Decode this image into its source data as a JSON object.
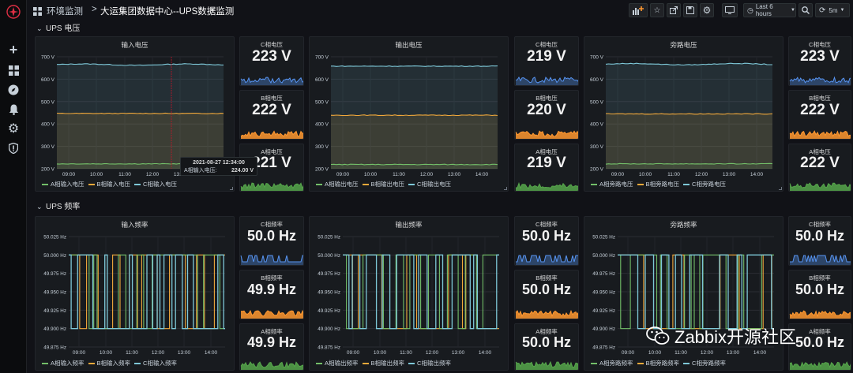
{
  "breadcrumb": {
    "folder": "环境监测",
    "separator": ">",
    "dashboard": "大运集团数据中心--UPS数据监测"
  },
  "toolbar": {
    "time_range": "Last 6 hours",
    "refresh_interval": "5m"
  },
  "rows": [
    {
      "title": "UPS 电压"
    },
    {
      "title": "UPS 频率"
    }
  ],
  "time_ticks": [
    "09:00",
    "10:00",
    "11:00",
    "12:00",
    "13:00",
    "14:00"
  ],
  "voltage_ticks": [
    "700 V",
    "600 V",
    "500 V",
    "400 V",
    "300 V",
    "200 V"
  ],
  "freq_ticks": [
    "50.025 Hz",
    "50.000 Hz",
    "49.975 Hz",
    "49.950 Hz",
    "49.925 Hz",
    "49.900 Hz",
    "49.875 Hz"
  ],
  "voltage_graphs": [
    {
      "title": "输入电压",
      "legend": [
        "A相输入电压",
        "B相输入电压",
        "C相输入电压"
      ]
    },
    {
      "title": "输出电压",
      "legend": [
        "A相输出电压",
        "B相输出电压",
        "C相输出电压"
      ]
    },
    {
      "title": "旁路电压",
      "legend": [
        "A相旁路电压",
        "B相旁路电压",
        "C相旁路电压"
      ]
    }
  ],
  "freq_graphs": [
    {
      "title": "输入频率",
      "legend": [
        "A相输入频率",
        "B相输入频率",
        "C相输入频率"
      ]
    },
    {
      "title": "输出频率",
      "legend": [
        "A相输出频率",
        "B相输出频率",
        "C相输出频率"
      ]
    },
    {
      "title": "旁路频率",
      "legend": [
        "A相旁路频率",
        "B相旁路频率",
        "C相旁路频率"
      ]
    }
  ],
  "voltage_stats": [
    [
      {
        "title": "C相电压",
        "value": "223 V",
        "color": "#5794f2"
      },
      {
        "title": "B相电压",
        "value": "222 V",
        "color": "#ff9830"
      },
      {
        "title": "A相电压",
        "value": "221 V",
        "color": "#56a64b"
      }
    ],
    [
      {
        "title": "C相电压",
        "value": "219 V",
        "color": "#5794f2"
      },
      {
        "title": "B相电压",
        "value": "220 V",
        "color": "#ff9830"
      },
      {
        "title": "A相电压",
        "value": "219 V",
        "color": "#56a64b"
      }
    ],
    [
      {
        "title": "C相电压",
        "value": "223 V",
        "color": "#5794f2"
      },
      {
        "title": "B相电压",
        "value": "222 V",
        "color": "#ff9830"
      },
      {
        "title": "A相电压",
        "value": "222 V",
        "color": "#56a64b"
      }
    ]
  ],
  "freq_stats": [
    [
      {
        "title": "C相频率",
        "value": "50.0 Hz",
        "color": "#5794f2"
      },
      {
        "title": "B相频率",
        "value": "49.9 Hz",
        "color": "#ff9830"
      },
      {
        "title": "A相频率",
        "value": "49.9 Hz",
        "color": "#56a64b"
      }
    ],
    [
      {
        "title": "C相频率",
        "value": "50.0 Hz",
        "color": "#5794f2"
      },
      {
        "title": "B相频率",
        "value": "50.0 Hz",
        "color": "#ff9830"
      },
      {
        "title": "A相频率",
        "value": "50.0 Hz",
        "color": "#56a64b"
      }
    ],
    [
      {
        "title": "C相频率",
        "value": "50.0 Hz",
        "color": "#5794f2"
      },
      {
        "title": "B相频率",
        "value": "50.0 Hz",
        "color": "#ff9830"
      },
      {
        "title": "A相频率",
        "value": "50.0 Hz",
        "color": "#56a64b"
      }
    ]
  ],
  "tooltip": {
    "time": "2021-08-27 12:34:00",
    "series": "A相输入电压:",
    "value": "224.00 V"
  },
  "watermark": {
    "text": "Zabbix开源社区",
    "icon": "wechat-icon"
  },
  "colors": {
    "phase_a": "#73bf69",
    "phase_b": "#f2a93b",
    "phase_c": "#7ec8d8",
    "stat_c": "#5794f2",
    "stat_b": "#ff9830",
    "stat_a": "#56a64b"
  },
  "chart_data": [
    {
      "type": "line",
      "title": "输入电压",
      "x": [
        "08:30",
        "14:30"
      ],
      "ylim": [
        200,
        700
      ],
      "series": [
        {
          "name": "A相输入电压",
          "values": [
            222,
            222
          ]
        },
        {
          "name": "B相输入电压",
          "values": [
            447,
            447
          ]
        },
        {
          "name": "C相输入电压",
          "values": [
            665,
            668
          ]
        }
      ]
    },
    {
      "type": "line",
      "title": "输出电压",
      "x": [
        "08:30",
        "14:30"
      ],
      "ylim": [
        200,
        700
      ],
      "series": [
        {
          "name": "A相输出电压",
          "values": [
            219,
            219
          ]
        },
        {
          "name": "B相输出电压",
          "values": [
            439,
            439
          ]
        },
        {
          "name": "C相输出电压",
          "values": [
            658,
            658
          ]
        }
      ]
    },
    {
      "type": "line",
      "title": "旁路电压",
      "x": [
        "08:30",
        "14:30"
      ],
      "ylim": [
        200,
        700
      ],
      "series": [
        {
          "name": "A相旁路电压",
          "values": [
            222,
            222
          ]
        },
        {
          "name": "B相旁路电压",
          "values": [
            445,
            445
          ]
        },
        {
          "name": "C相旁路电压",
          "values": [
            667,
            667
          ]
        }
      ]
    },
    {
      "type": "line",
      "title": "输入频率",
      "ylim": [
        49.875,
        50.025
      ],
      "series": [
        {
          "name": "A相输入频率",
          "values": [
            50.0,
            49.9
          ]
        },
        {
          "name": "B相输入频率",
          "values": [
            50.0,
            49.9
          ]
        },
        {
          "name": "C相输入频率",
          "values": [
            50.0,
            49.9
          ]
        }
      ]
    },
    {
      "type": "line",
      "title": "输出频率",
      "ylim": [
        49.875,
        50.025
      ],
      "series": [
        {
          "name": "A相输出频率",
          "values": [
            50.0,
            49.9
          ]
        },
        {
          "name": "B相输出频率",
          "values": [
            50.0,
            49.9
          ]
        },
        {
          "name": "C相输出频率",
          "values": [
            50.0,
            49.9
          ]
        }
      ]
    },
    {
      "type": "line",
      "title": "旁路频率",
      "ylim": [
        49.875,
        50.025
      ],
      "series": [
        {
          "name": "A相旁路频率",
          "values": [
            50.0,
            49.9
          ]
        },
        {
          "name": "B相旁路频率",
          "values": [
            50.0,
            49.9
          ]
        },
        {
          "name": "C相旁路频率",
          "values": [
            50.0,
            49.9
          ]
        }
      ]
    }
  ]
}
